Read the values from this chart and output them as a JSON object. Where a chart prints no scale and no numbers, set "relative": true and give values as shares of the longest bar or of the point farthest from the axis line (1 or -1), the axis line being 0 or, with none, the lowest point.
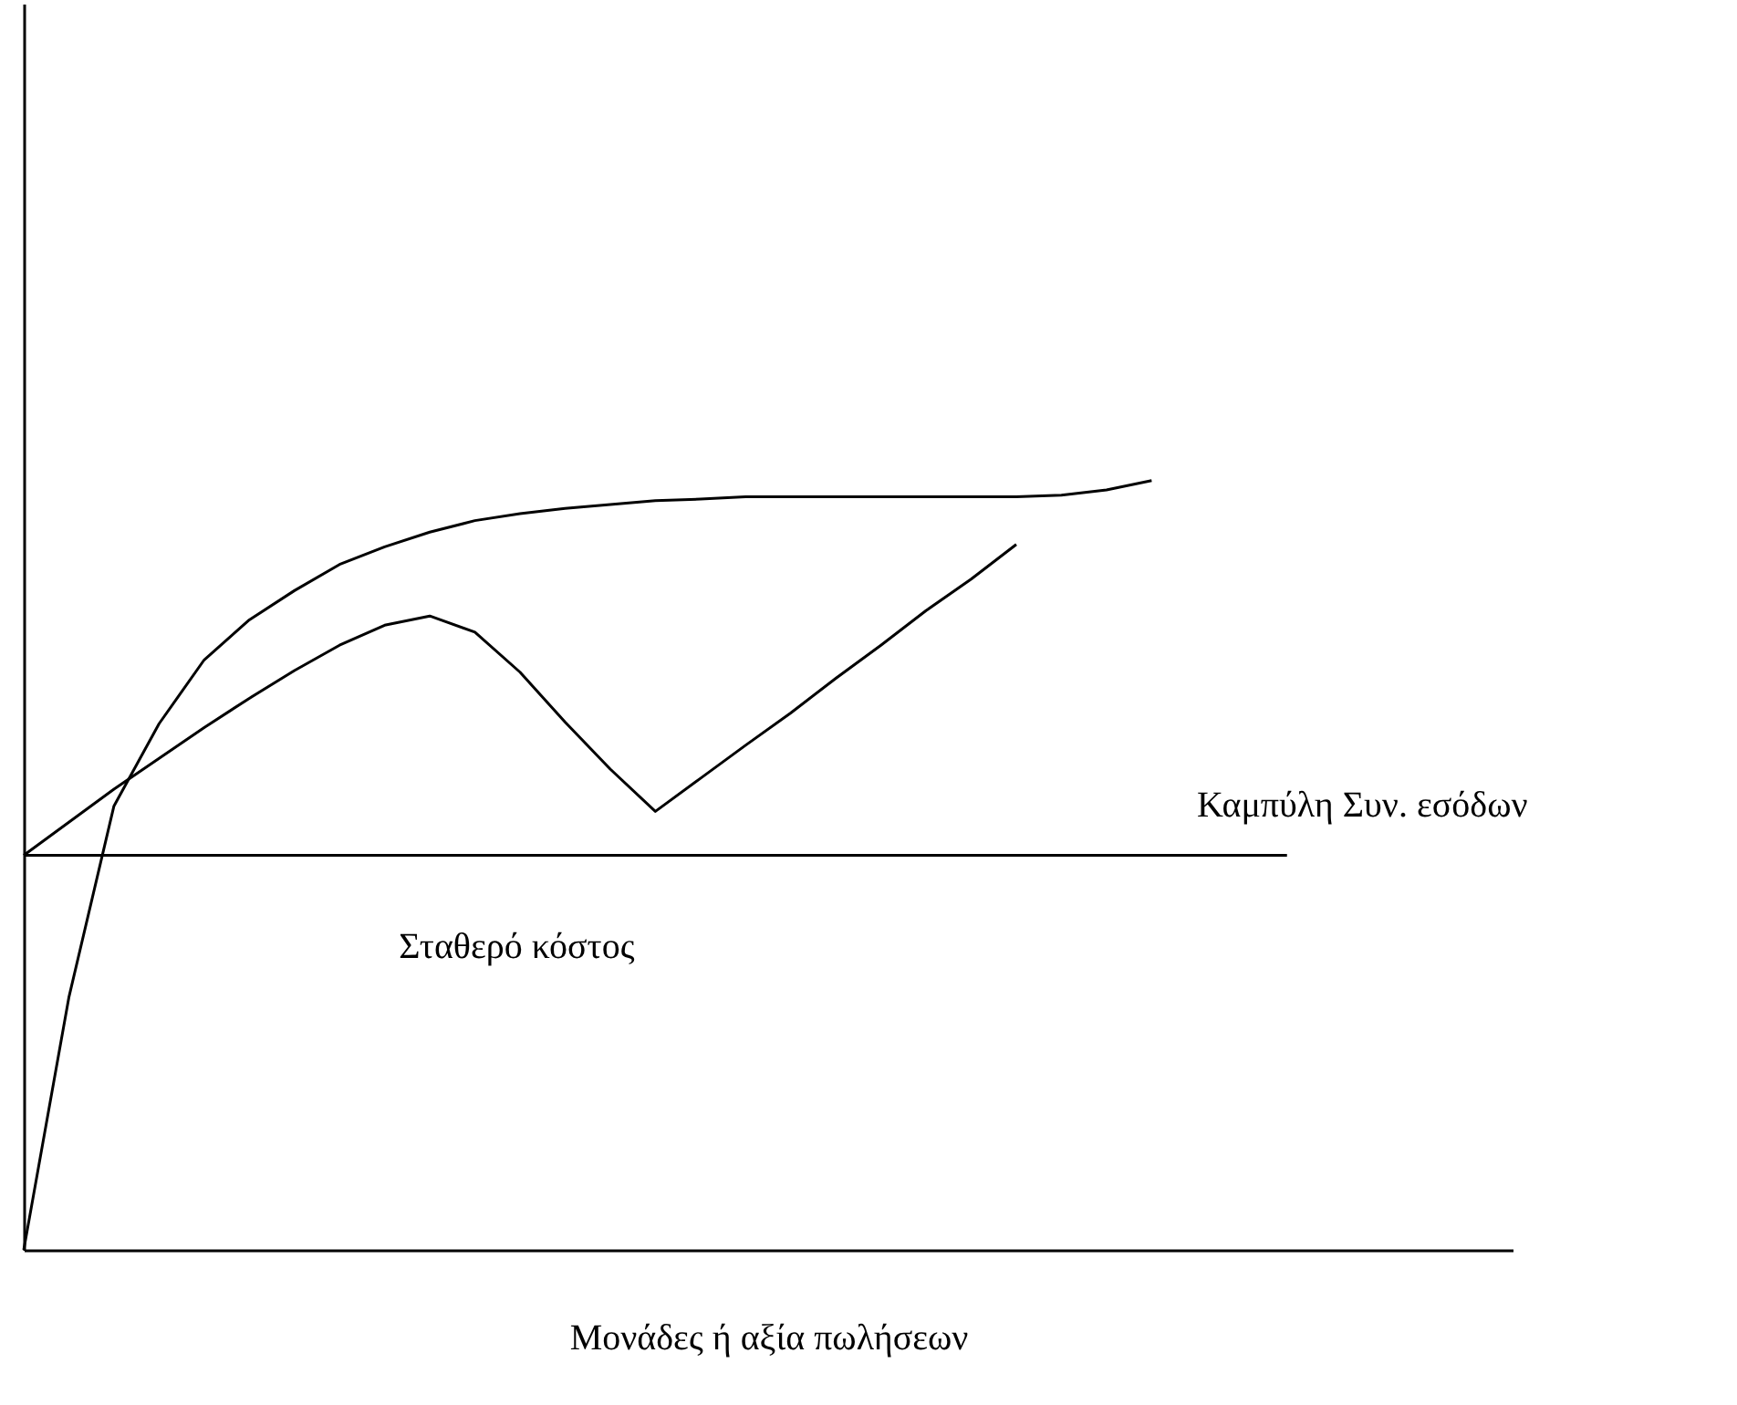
{
  "chart_data": {
    "type": "line",
    "relative": true,
    "xlabel": "Μονάδες ή αξία πωλήσεων",
    "tick_labels": false,
    "grid": false,
    "marker": "none",
    "line_style": "solid",
    "categories": [
      null,
      null,
      null,
      null,
      null,
      null,
      null,
      null,
      null,
      null,
      null,
      null,
      null,
      null,
      null,
      null,
      null,
      null,
      null,
      null,
      null,
      null,
      null,
      null,
      null,
      null,
      null,
      null,
      null,
      null,
      null,
      null,
      null,
      null
    ],
    "series": [
      {
        "color": "#000000",
        "values": [
          0.513,
          0.556,
          0.599,
          0.639,
          0.679,
          0.717,
          0.753,
          0.786,
          0.812,
          0.824,
          0.803,
          0.751,
          0.686,
          0.625,
          0.57,
          0.613,
          0.656,
          0.698,
          0.743,
          0.786,
          0.831,
          0.872,
          0.917,
          null,
          null,
          null,
          null,
          null,
          null,
          null,
          null,
          null,
          null,
          null
        ]
      },
      {
        "color": "#000000",
        "values": [
          0,
          0.328,
          0.577,
          0.684,
          0.767,
          0.819,
          0.857,
          0.891,
          0.914,
          0.933,
          0.948,
          0.957,
          0.964,
          0.969,
          0.974,
          0.976,
          0.979,
          0.979,
          0.979,
          0.979,
          0.979,
          0.979,
          0.979,
          0.981,
          0.988,
          1,
          null,
          null,
          null,
          null,
          null,
          null,
          null,
          null
        ]
      },
      {
        "color": "#000000",
        "values": [
          0.513,
          0.513,
          0.513,
          0.513,
          0.513,
          0.513,
          0.513,
          0.513,
          0.513,
          0.513,
          0.513,
          0.513,
          0.513,
          0.513,
          0.513,
          0.513,
          0.513,
          0.513,
          0.513,
          0.513,
          0.513,
          0.513,
          0.513,
          0.513,
          0.513,
          0.513,
          0.513,
          0.513,
          0.513,
          null,
          null,
          null,
          null,
          null
        ]
      }
    ],
    "annotations": [
      "Καμπύλη Συν. εσόδων",
      "Σταθερό κόστος"
    ]
  }
}
